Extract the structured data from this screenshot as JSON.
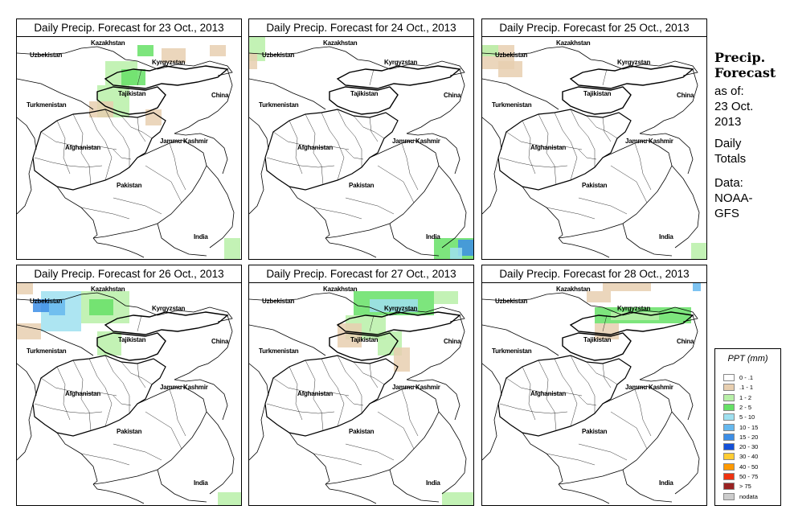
{
  "panels": [
    {
      "title": "Daily Precip. Forecast for  23 Oct., 2013"
    },
    {
      "title": "Daily Precip. Forecast for  24 Oct., 2013"
    },
    {
      "title": "Daily Precip. Forecast for  25 Oct., 2013"
    },
    {
      "title": "Daily Precip. Forecast for  26 Oct., 2013"
    },
    {
      "title": "Daily Precip. Forecast for  27 Oct., 2013"
    },
    {
      "title": "Daily Precip. Forecast for  28 Oct., 2013"
    }
  ],
  "labels": {
    "kazakhstan": "Kazakhstan",
    "uzbekistan": "Uzbekistan",
    "kyrgyzstan": "Kyrgyzstan",
    "tajikistan": "Tajikistan",
    "turkmenistan": "Turkmenistan",
    "china": "China",
    "afghanistan": "Afghanistan",
    "jammu_kashmir": "Jammu Kashmir",
    "pakistan": "Pakistan",
    "india": "India"
  },
  "side": {
    "title_line1": "Precip.",
    "title_line2": "Forecast",
    "asof_line1": "as of:",
    "asof_line2": "23 Oct.",
    "asof_line3": "2013",
    "daily_line1": "Daily",
    "daily_line2": "Totals",
    "data_line1": "Data:",
    "data_line2": "NOAA-",
    "data_line3": "GFS"
  },
  "legend": {
    "title": "PPT (mm)",
    "items": [
      {
        "label": "0 - .1",
        "color": "#ffffff"
      },
      {
        "label": ".1 - 1",
        "color": "#e8cfb0"
      },
      {
        "label": "1 - 2",
        "color": "#b8f0a8"
      },
      {
        "label": "2 - 5",
        "color": "#66e066"
      },
      {
        "label": "5 - 10",
        "color": "#9fe0f0"
      },
      {
        "label": "10 - 15",
        "color": "#66b8ee"
      },
      {
        "label": "15 - 20",
        "color": "#3d8ee6"
      },
      {
        "label": "20 - 30",
        "color": "#1450d8"
      },
      {
        "label": "30 - 40",
        "color": "#ffcc33"
      },
      {
        "label": "40 - 50",
        "color": "#ff9900"
      },
      {
        "label": "50 - 75",
        "color": "#ee3311"
      },
      {
        "label": "> 75",
        "color": "#992222"
      },
      {
        "label": "nodata",
        "color": "#cccccc"
      }
    ]
  }
}
